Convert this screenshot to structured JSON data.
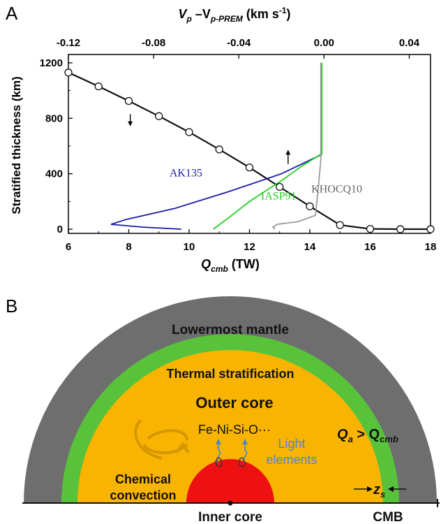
{
  "panel_a": {
    "label": "A",
    "top_axis_label_parts": [
      "V",
      "p",
      " –V",
      "p-PREM",
      " (km s",
      "-1",
      ")"
    ],
    "bottom_axis_label_parts": [
      "Q",
      "cmb",
      " (TW)"
    ],
    "ylabel": "Stratified thickness (km)",
    "model_labels": [
      "AK135",
      "IASP91",
      "KHOCQ10"
    ]
  },
  "panel_b": {
    "label": "B",
    "lowermost_mantle": "Lowermost mantle",
    "thermal_stratification": "Thermal stratification",
    "outer_core": "Outer core",
    "composition": "Fe-Ni-Si-O···",
    "light_elements_line1": "Light",
    "light_elements_line2": "elements",
    "chemical_line1": "Chemical",
    "chemical_line2": "convection",
    "inner_core": "Inner core",
    "cmb": "CMB",
    "q_relation_parts": [
      "Q",
      "a",
      " > Q",
      "cmb"
    ],
    "zs_parts": [
      "z",
      "s"
    ],
    "colors": {
      "mantle": "#6e6e6e",
      "stratification": "#57c23a",
      "outer_core": "#f8b400",
      "inner_core": "#ee1111",
      "arrows_blue": "#4a88c8"
    }
  },
  "chart_data": {
    "type": "line",
    "x": {
      "label": "Q_cmb (TW)",
      "range": [
        6,
        18
      ],
      "ticks": [
        6,
        8,
        10,
        12,
        14,
        16,
        18
      ]
    },
    "x_top": {
      "label": "V_p –V_p-PREM (km s-1)",
      "range": [
        -0.12,
        0.05
      ],
      "ticks": [
        "-0.12",
        "-0.08",
        "-0.04",
        "0.00",
        "0.04"
      ]
    },
    "y": {
      "label": "Stratified thickness (km)",
      "range": [
        -30,
        1260
      ],
      "ticks": [
        0,
        400,
        800,
        1200
      ]
    },
    "series": [
      {
        "axis": "bottom",
        "color": "#111111",
        "markers": true,
        "points": [
          [
            6,
            1130
          ],
          [
            7,
            1030
          ],
          [
            8,
            925
          ],
          [
            9,
            815
          ],
          [
            10,
            700
          ],
          [
            11,
            575
          ],
          [
            12,
            445
          ],
          [
            13,
            305
          ],
          [
            14,
            165
          ],
          [
            15,
            30
          ],
          [
            16,
            2
          ],
          [
            17,
            0
          ],
          [
            18,
            0
          ]
        ]
      },
      {
        "name": "AK135",
        "axis": "top",
        "color": "#1a1aa8",
        "points": [
          [
            -0.067,
            0
          ],
          [
            -0.085,
            15
          ],
          [
            -0.1,
            35
          ],
          [
            -0.093,
            70
          ],
          [
            -0.07,
            150
          ],
          [
            -0.045,
            270
          ],
          [
            -0.02,
            400
          ],
          [
            -0.001,
            540
          ]
        ]
      },
      {
        "name": "IASP91",
        "axis": "top",
        "color": "#20d020",
        "points": [
          [
            -0.052,
            0
          ],
          [
            -0.045,
            80
          ],
          [
            -0.035,
            200
          ],
          [
            -0.02,
            350
          ],
          [
            -0.01,
            460
          ],
          [
            -0.001,
            545
          ],
          [
            -0.001,
            1200
          ]
        ]
      },
      {
        "name": "KHOCQ10",
        "axis": "top",
        "color": "#9a9a9a",
        "points": [
          [
            -0.023,
            0
          ],
          [
            -0.024,
            15
          ],
          [
            -0.022,
            35
          ],
          [
            -0.012,
            55
          ],
          [
            -0.004,
            100
          ],
          [
            -0.003,
            250
          ],
          [
            -0.0015,
            500
          ],
          [
            -0.0015,
            1200
          ]
        ]
      }
    ]
  }
}
